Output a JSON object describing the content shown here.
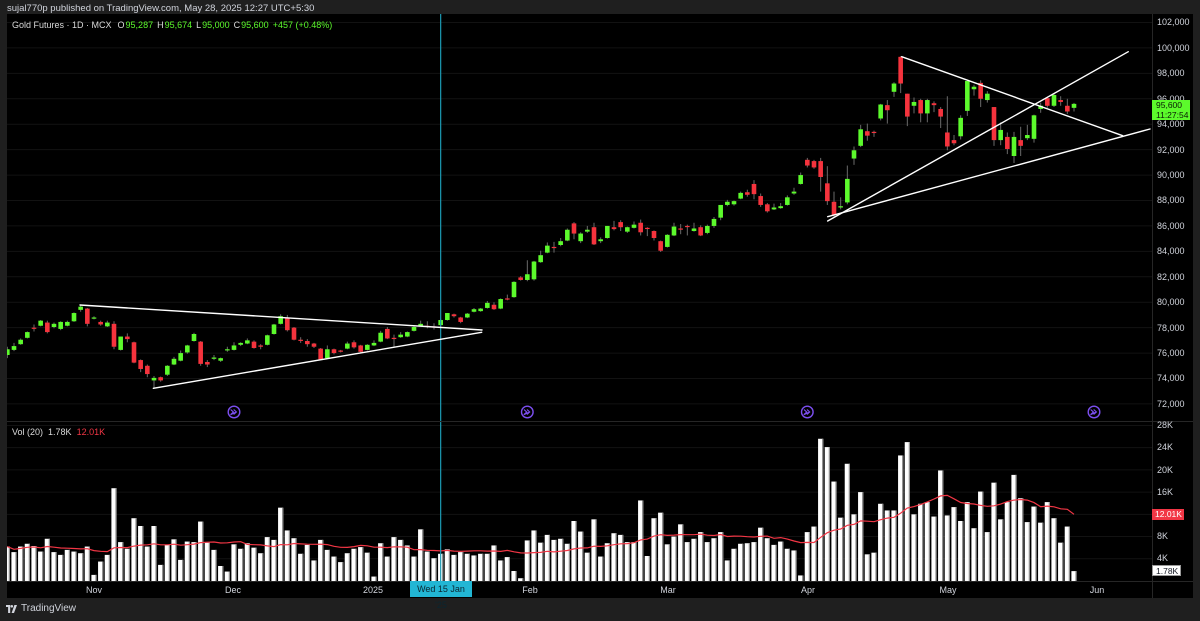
{
  "header": {
    "published_text": "sujal770p published on TradingView.com, May 28, 2025 12:27 UTC+5:30"
  },
  "legend": {
    "symbol": "Gold Futures · 1D · MCX",
    "o_label": "O",
    "o": "95,287",
    "h_label": "H",
    "h": "95,674",
    "l_label": "L",
    "l": "95,000",
    "c_label": "C",
    "c": "95,600",
    "change": "+457 (+0.48%)"
  },
  "volume_legend": {
    "name": "Vol (20)",
    "value": "1.78K",
    "ma": "12.01K"
  },
  "price_axis": {
    "labels": [
      "102,000",
      "100,000",
      "98,000",
      "96,000",
      "94,000",
      "92,000",
      "90,000",
      "88,000",
      "86,000",
      "84,000",
      "82,000",
      "80,000",
      "78,000",
      "76,000",
      "74,000",
      "72,000"
    ],
    "current_price": "95,600",
    "countdown": "11:27:54"
  },
  "volume_axis": {
    "labels": [
      "28K",
      "24K",
      "20K",
      "16K",
      "8K",
      "4K"
    ],
    "ma_label": "12.01K",
    "value_label": "1.78K"
  },
  "time_axis": {
    "labels": [
      "Nov",
      "Dec",
      "2025",
      "Feb",
      "Mar",
      "Apr",
      "May",
      "Jun"
    ],
    "crosshair_label": "Wed 15 Jan '25"
  },
  "footer": {
    "brand": "TradingView",
    "logo_icon": "tradingview-logo-icon"
  },
  "icons": {
    "event": "contract-rollover-icon"
  },
  "colors": {
    "up": "#5cfa2c",
    "down": "#f5333d",
    "wick": "#6a6a6a",
    "volume_bar": "#ffffff",
    "volume_bar_shade": "#8c8c8c",
    "volume_ma": "#f23645",
    "crosshair": "#1c9ab3",
    "trendline": "#ffffff",
    "event_icon": "#7c4ff0",
    "grid": "#121212"
  },
  "chart_data": {
    "type": "candlestick",
    "title": "Gold Futures · 1D · MCX",
    "xlabel": "",
    "ylabel": "",
    "legend_position": "top-left",
    "grid": true,
    "x_tick_labels": [
      {
        "label": "Nov",
        "index": 13
      },
      {
        "label": "Dec",
        "index": 34
      },
      {
        "label": "2025",
        "index": 55
      },
      {
        "label": "Feb",
        "index": 78
      },
      {
        "label": "Mar",
        "index": 99
      },
      {
        "label": "Apr",
        "index": 120
      },
      {
        "label": "May",
        "index": 141
      },
      {
        "label": "Jun",
        "index": 163
      }
    ],
    "x_range": [
      -0.2,
      171.7
    ],
    "ylim": [
      70658,
      102668
    ],
    "y_ticks": [
      102000,
      100000,
      98000,
      96000,
      94000,
      92000,
      90000,
      88000,
      86000,
      84000,
      82000,
      80000,
      78000,
      76000,
      74000,
      72000
    ],
    "volume_ylim": [
      0,
      28.8
    ],
    "volume_ticks": [
      28,
      24,
      20,
      16,
      12,
      8,
      4
    ],
    "volume_unit": "K",
    "candle_fields": [
      "open",
      "high",
      "low",
      "close"
    ],
    "candles": [
      [
        75850,
        76500,
        75600,
        76300
      ],
      [
        76250,
        76800,
        76150,
        76550
      ],
      [
        76700,
        77150,
        76650,
        77050
      ],
      [
        77200,
        77700,
        77150,
        77650
      ],
      [
        78000,
        78250,
        77700,
        77950
      ],
      [
        78150,
        78600,
        78100,
        78550
      ],
      [
        78400,
        78550,
        77550,
        77650
      ],
      [
        78050,
        78400,
        77950,
        78300
      ],
      [
        77900,
        78500,
        77800,
        78450
      ],
      [
        78150,
        78550,
        78100,
        78450
      ],
      [
        78500,
        79200,
        78450,
        79150
      ],
      [
        79400,
        79750,
        79250,
        79650
      ],
      [
        79500,
        79550,
        78100,
        78300
      ],
      [
        78750,
        78900,
        78650,
        78800
      ],
      [
        78450,
        78550,
        78150,
        78250
      ],
      [
        78100,
        78550,
        78050,
        78400
      ],
      [
        78300,
        78500,
        76300,
        76500
      ],
      [
        76250,
        77300,
        76200,
        77300
      ],
      [
        77300,
        77550,
        76850,
        77100
      ],
      [
        76850,
        76900,
        75200,
        75250
      ],
      [
        75450,
        75500,
        74500,
        74750
      ],
      [
        75000,
        75100,
        74100,
        74350
      ],
      [
        73850,
        74200,
        73250,
        74050
      ],
      [
        74100,
        74150,
        73750,
        73850
      ],
      [
        74300,
        75050,
        74200,
        75000
      ],
      [
        75100,
        75700,
        75050,
        75550
      ],
      [
        75400,
        76200,
        75350,
        76000
      ],
      [
        76050,
        76650,
        75950,
        76600
      ],
      [
        76950,
        77600,
        76900,
        77500
      ],
      [
        76900,
        76950,
        75000,
        75150
      ],
      [
        75300,
        75450,
        74900,
        75100
      ],
      [
        75550,
        75850,
        75450,
        75650
      ],
      [
        75400,
        75650,
        75300,
        75600
      ],
      [
        76300,
        76500,
        76100,
        76300
      ],
      [
        76250,
        76850,
        76200,
        76600
      ],
      [
        76650,
        76850,
        76550,
        76800
      ],
      [
        76750,
        77150,
        76700,
        77000
      ],
      [
        76900,
        77000,
        76350,
        76400
      ],
      [
        76600,
        76700,
        76300,
        76500
      ],
      [
        76650,
        77450,
        76600,
        77400
      ],
      [
        77500,
        78300,
        77450,
        78250
      ],
      [
        78300,
        79050,
        78250,
        78900
      ],
      [
        78750,
        79000,
        77700,
        77800
      ],
      [
        78000,
        78050,
        77000,
        77050
      ],
      [
        77050,
        77250,
        76800,
        77000
      ],
      [
        76950,
        77100,
        76500,
        76700
      ],
      [
        76750,
        76800,
        76400,
        76500
      ],
      [
        76350,
        76400,
        75450,
        75500
      ],
      [
        75600,
        76600,
        75550,
        76300
      ],
      [
        76300,
        76350,
        75900,
        76000
      ],
      [
        76200,
        76250,
        76050,
        76150
      ],
      [
        76350,
        76900,
        76300,
        76750
      ],
      [
        76850,
        77000,
        76350,
        76450
      ],
      [
        76600,
        76650,
        76050,
        76100
      ],
      [
        76250,
        76700,
        76200,
        76650
      ],
      [
        76600,
        77000,
        76550,
        76800
      ],
      [
        76900,
        77750,
        76850,
        77600
      ],
      [
        77900,
        78050,
        77100,
        77150
      ],
      [
        77200,
        77450,
        76500,
        77150
      ],
      [
        77250,
        77650,
        77200,
        77450
      ],
      [
        77300,
        77700,
        77250,
        77650
      ],
      [
        77750,
        78100,
        77700,
        78050
      ],
      [
        78150,
        78550,
        78100,
        78300
      ],
      [
        78150,
        78500,
        77950,
        78050
      ],
      [
        78100,
        78350,
        77850,
        78050
      ],
      [
        78200,
        78700,
        78150,
        78600
      ],
      [
        78600,
        79150,
        78550,
        79150
      ],
      [
        79050,
        79100,
        78800,
        78900
      ],
      [
        78800,
        78850,
        78350,
        78450
      ],
      [
        78800,
        79150,
        78750,
        79100
      ],
      [
        79250,
        79550,
        79200,
        79450
      ],
      [
        79300,
        79550,
        79250,
        79500
      ],
      [
        79550,
        80100,
        79500,
        79950
      ],
      [
        79800,
        80000,
        79400,
        79450
      ],
      [
        79500,
        80300,
        79450,
        80250
      ],
      [
        80300,
        80600,
        80150,
        80250
      ],
      [
        80400,
        81650,
        80350,
        81600
      ],
      [
        81950,
        82050,
        81700,
        81750
      ],
      [
        81750,
        83300,
        81650,
        82200
      ],
      [
        81800,
        83250,
        81700,
        83200
      ],
      [
        83150,
        84050,
        83100,
        83700
      ],
      [
        83900,
        84700,
        83850,
        84450
      ],
      [
        84350,
        84750,
        83900,
        84300
      ],
      [
        84500,
        85050,
        84400,
        84800
      ],
      [
        84850,
        85800,
        84800,
        85700
      ],
      [
        86200,
        86300,
        84950,
        85400
      ],
      [
        84800,
        85500,
        84650,
        85400
      ],
      [
        85550,
        86000,
        85450,
        85700
      ],
      [
        85900,
        86250,
        84500,
        84550
      ],
      [
        84800,
        85100,
        84650,
        84950
      ],
      [
        85050,
        86000,
        85000,
        86000
      ],
      [
        85900,
        86400,
        85650,
        85750
      ],
      [
        86300,
        86450,
        85600,
        85900
      ],
      [
        85550,
        85950,
        85450,
        85900
      ],
      [
        85850,
        86350,
        85800,
        86100
      ],
      [
        86250,
        86500,
        85250,
        85500
      ],
      [
        85850,
        85900,
        85200,
        85800
      ],
      [
        85600,
        85650,
        84850,
        85050
      ],
      [
        84800,
        84850,
        83950,
        84050
      ],
      [
        84350,
        85350,
        84300,
        85300
      ],
      [
        85250,
        86250,
        85200,
        85950
      ],
      [
        85800,
        86150,
        85350,
        85750
      ],
      [
        86000,
        86100,
        85250,
        85950
      ],
      [
        85600,
        86250,
        85550,
        85800
      ],
      [
        85900,
        86050,
        85200,
        85250
      ],
      [
        85450,
        86100,
        85350,
        86000
      ],
      [
        86000,
        86700,
        85850,
        86550
      ],
      [
        86650,
        87650,
        86450,
        87650
      ],
      [
        87650,
        88050,
        87550,
        87900
      ],
      [
        87700,
        88000,
        87600,
        87950
      ],
      [
        88150,
        88700,
        88100,
        88600
      ],
      [
        88650,
        88850,
        88300,
        88450
      ],
      [
        89300,
        89600,
        88100,
        88500
      ],
      [
        88350,
        88550,
        87500,
        87650
      ],
      [
        87700,
        87800,
        87050,
        87150
      ],
      [
        87300,
        87750,
        87250,
        87450
      ],
      [
        87400,
        87800,
        87350,
        87550
      ],
      [
        87650,
        88400,
        87600,
        88250
      ],
      [
        88550,
        89000,
        88450,
        88700
      ],
      [
        89300,
        90200,
        89250,
        90000
      ],
      [
        91200,
        91350,
        90600,
        90750
      ],
      [
        91100,
        91200,
        90500,
        90600
      ],
      [
        91100,
        91350,
        88700,
        89850
      ],
      [
        89350,
        90700,
        87650,
        87950
      ],
      [
        87900,
        88700,
        86700,
        86850
      ],
      [
        87450,
        88250,
        87300,
        87550
      ],
      [
        87850,
        90750,
        87700,
        89700
      ],
      [
        91300,
        92250,
        90800,
        91950
      ],
      [
        92300,
        93950,
        92200,
        93600
      ],
      [
        93450,
        94050,
        92700,
        93100
      ],
      [
        93400,
        93500,
        93000,
        93350
      ],
      [
        94450,
        95600,
        94300,
        95550
      ],
      [
        95500,
        95900,
        94050,
        95100
      ],
      [
        96550,
        97300,
        96150,
        97200
      ],
      [
        99300,
        99350,
        96450,
        97200
      ],
      [
        96400,
        96400,
        93850,
        94600
      ],
      [
        95450,
        96100,
        94850,
        95750
      ],
      [
        95900,
        96000,
        94150,
        94850
      ],
      [
        94850,
        96000,
        94150,
        95900
      ],
      [
        95650,
        95800,
        94950,
        95500
      ],
      [
        95200,
        95350,
        93700,
        94600
      ],
      [
        93350,
        96200,
        91950,
        92250
      ],
      [
        92750,
        93150,
        92350,
        92500
      ],
      [
        93050,
        94700,
        92800,
        94500
      ],
      [
        95050,
        97400,
        94650,
        97400
      ],
      [
        96750,
        97100,
        96250,
        96950
      ],
      [
        97250,
        97450,
        95350,
        96000
      ],
      [
        95900,
        96600,
        95700,
        96400
      ],
      [
        95350,
        95350,
        92300,
        92750
      ],
      [
        92750,
        94150,
        92350,
        93550
      ],
      [
        93000,
        93350,
        91650,
        92050
      ],
      [
        91500,
        93400,
        90950,
        93000
      ],
      [
        92750,
        93800,
        91500,
        92300
      ],
      [
        92900,
        93950,
        92750,
        93150
      ],
      [
        92850,
        94750,
        92550,
        94700
      ],
      [
        95200,
        95700,
        94900,
        95450
      ],
      [
        96050,
        96100,
        95300,
        95450
      ],
      [
        95450,
        96450,
        95350,
        96300
      ],
      [
        95900,
        96200,
        95450,
        95750
      ],
      [
        95450,
        96000,
        94800,
        95000
      ],
      [
        95287,
        95674,
        95000,
        95600
      ]
    ],
    "volume_k": [
      6.2,
      5.2,
      6.2,
      6.7,
      6.3,
      5.3,
      7.6,
      5.2,
      4.7,
      5.6,
      5.3,
      5.0,
      6.2,
      1.1,
      3.5,
      4.7,
      16.7,
      7.0,
      5.8,
      11.3,
      9.9,
      6.2,
      9.9,
      2.9,
      6.5,
      7.5,
      3.8,
      7.1,
      7.0,
      10.7,
      6.9,
      5.6,
      2.7,
      1.7,
      6.6,
      5.8,
      6.8,
      6.0,
      5.0,
      7.9,
      7.4,
      13.2,
      9.1,
      7.7,
      4.9,
      6.5,
      3.7,
      7.4,
      5.6,
      4.4,
      3.4,
      5.0,
      5.8,
      6.1,
      5.1,
      0.8,
      6.8,
      4.4,
      7.9,
      7.4,
      6.4,
      4.4,
      9.3,
      5.3,
      4.1,
      4.9,
      5.7,
      4.7,
      5.2,
      4.9,
      4.6,
      4.9,
      4.9,
      6.4,
      3.7,
      4.3,
      1.8,
      0.5,
      7.3,
      9.1,
      6.9,
      8.3,
      7.4,
      7.6,
      6.7,
      10.8,
      8.9,
      5.1,
      11.1,
      4.4,
      6.8,
      8.6,
      8.3,
      7.0,
      7.0,
      14.5,
      4.5,
      11.3,
      12.3,
      6.6,
      8.0,
      10.2,
      7.0,
      7.6,
      8.8,
      7.0,
      7.7,
      8.8,
      3.7,
      5.8,
      6.7,
      6.8,
      7.0,
      9.6,
      7.7,
      6.5,
      7.1,
      5.8,
      5.5,
      1.0,
      8.8,
      9.8,
      25.6,
      24.1,
      17.9,
      11.4,
      21.1,
      12.0,
      16.0,
      4.8,
      5.1,
      13.9,
      12.7,
      12.7,
      22.6,
      25.0,
      12.0,
      13.9,
      14.2,
      11.6,
      19.9,
      11.8,
      13.3,
      10.8,
      14.2,
      9.5,
      16.1,
      8.8,
      17.7,
      11.1,
      14.2,
      19.1,
      14.9,
      10.6,
      13.4,
      10.5,
      14.2,
      11.3,
      6.9,
      9.8,
      1.78
    ],
    "volume_ma_period": 20,
    "volume_ma_last_k": 12.01,
    "last": {
      "open": 95287,
      "high": 95674,
      "low": 95000,
      "close": 95600,
      "change": 457,
      "change_pct": 0.48
    },
    "crosshair_index": 65,
    "crosshair_label": "Wed 15 Jan '25",
    "trendlines": [
      {
        "name": "left-triangle-upper",
        "i1": 10.9,
        "p1": 79781,
        "i2": 71.2,
        "p2": 77815
      },
      {
        "name": "left-triangle-lower",
        "i1": 21.9,
        "p1": 73229,
        "i2": 71.15,
        "p2": 77634
      },
      {
        "name": "right-descending",
        "i1": 134.15,
        "p1": 99310,
        "i2": 167.3,
        "p2": 93096
      },
      {
        "name": "right-rising-steep",
        "i1": 123.05,
        "p1": 86387,
        "i2": 168.14,
        "p2": 99703
      },
      {
        "name": "right-rising-shallow",
        "i1": 123.05,
        "p1": 86725,
        "i2": 171.4,
        "p2": 93623
      }
    ],
    "events": [
      34,
      78,
      120,
      163
    ]
  }
}
